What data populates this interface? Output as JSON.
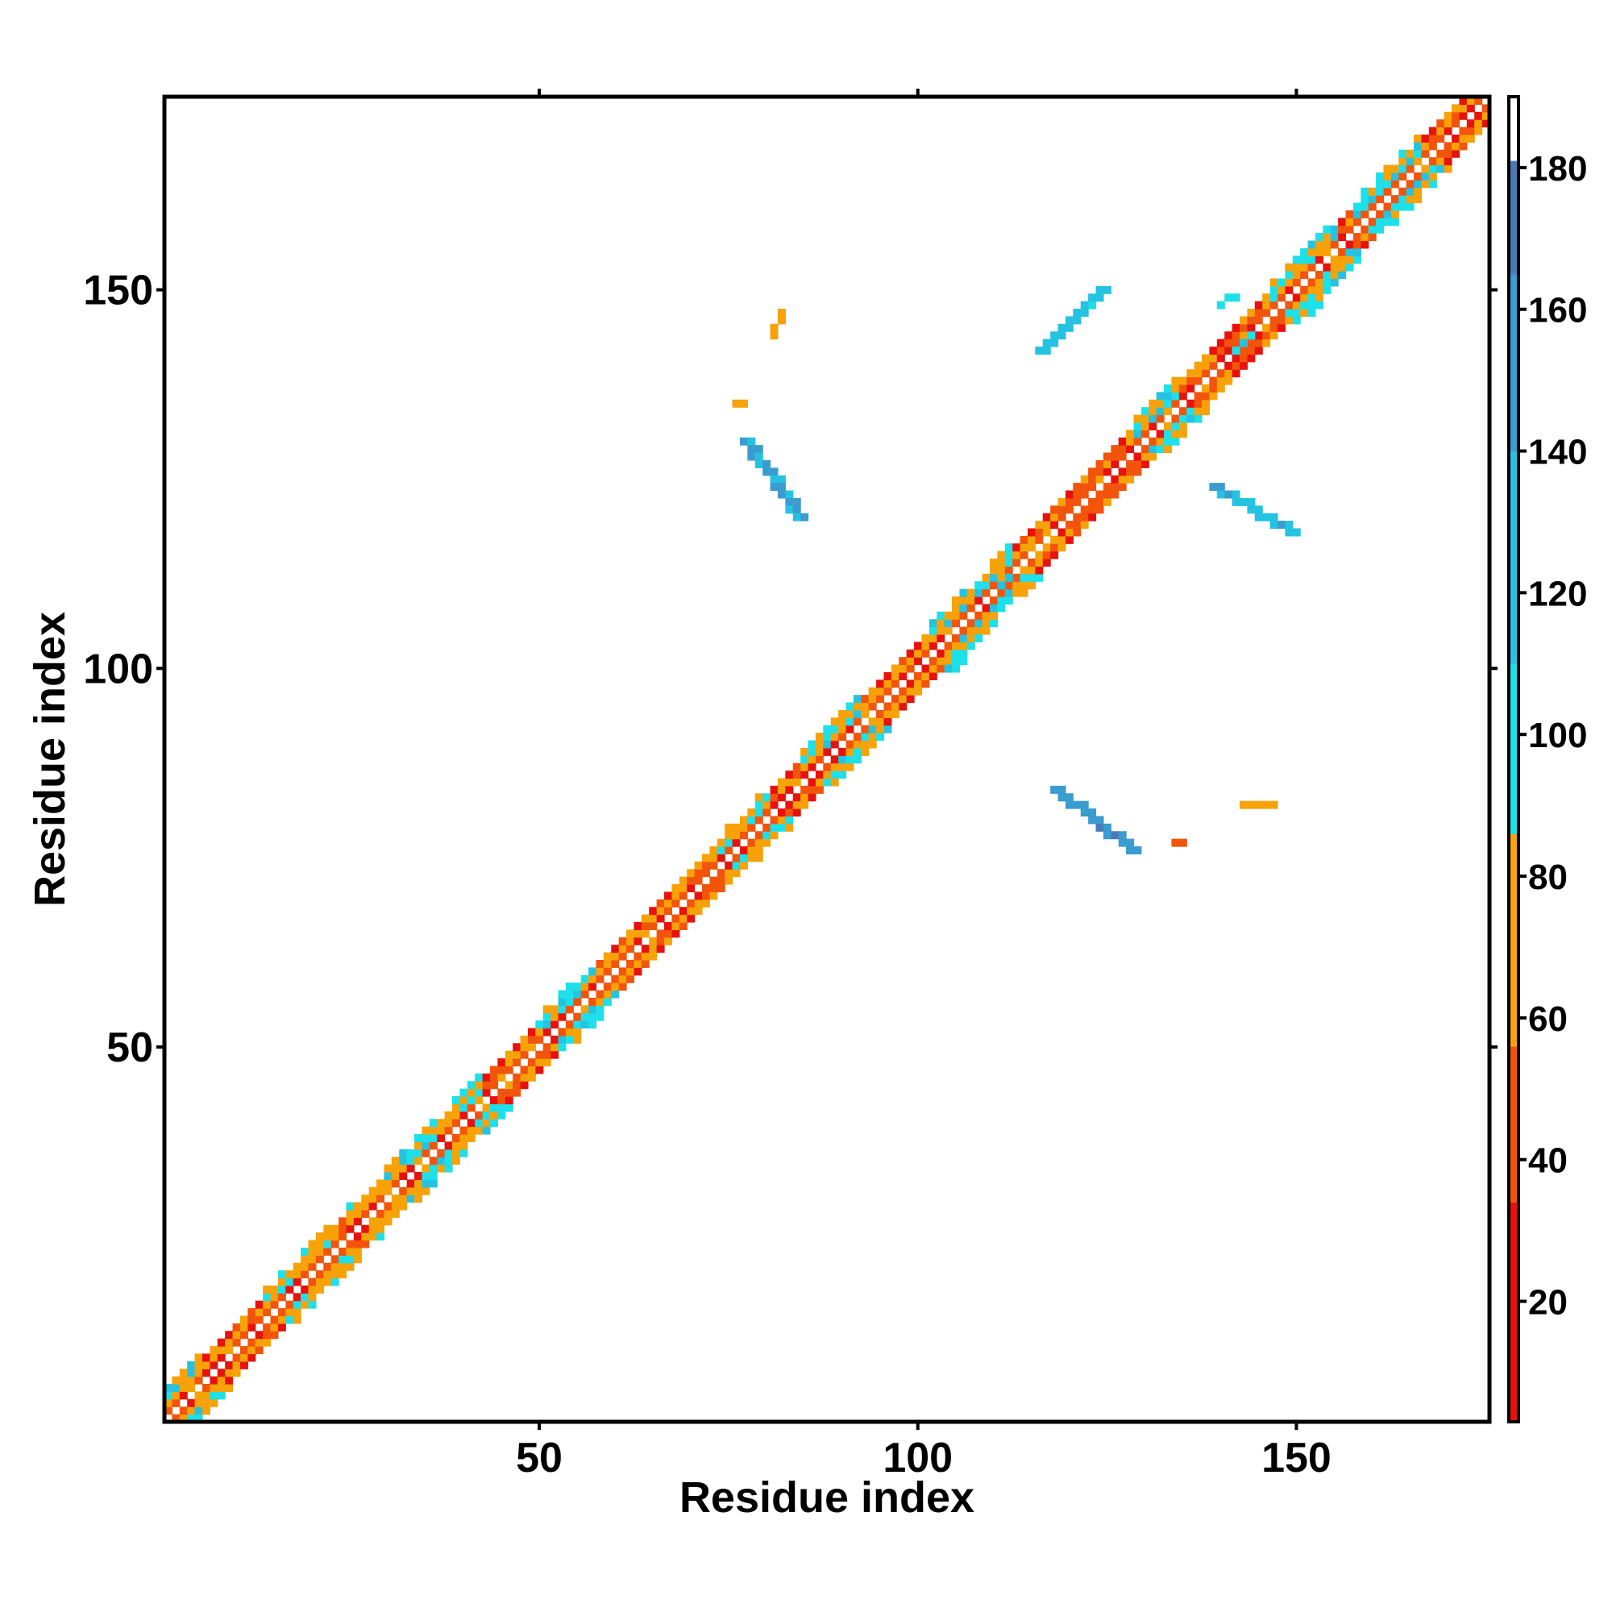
{
  "chart_data": {
    "type": "heatmap",
    "title": "",
    "xlabel": "Residue index",
    "ylabel": "Residue index",
    "xlim": [
      1,
      175
    ],
    "ylim": [
      1,
      175
    ],
    "x_ticks": [
      50,
      100,
      150
    ],
    "y_ticks": [
      50,
      100,
      150
    ],
    "x_tick_labels": [
      "50",
      "100",
      "150"
    ],
    "y_tick_labels": [
      "50",
      "100",
      "150"
    ],
    "grid": false,
    "colorbar": {
      "range": [
        3,
        190
      ],
      "ticks": [
        20,
        40,
        60,
        80,
        100,
        120,
        140,
        160,
        180
      ],
      "tick_labels": [
        "20",
        "40",
        "60",
        "80",
        "100",
        "120",
        "140",
        "160",
        "180"
      ],
      "segments": [
        {
          "from": 3,
          "to": 34,
          "color": "#e8120c"
        },
        {
          "from": 34,
          "to": 56,
          "color": "#f2540c"
        },
        {
          "from": 56,
          "to": 86,
          "color": "#f7a208"
        },
        {
          "from": 86,
          "to": 110,
          "color": "#1de0ea"
        },
        {
          "from": 110,
          "to": 140,
          "color": "#25c3e1"
        },
        {
          "from": 140,
          "to": 165,
          "color": "#3a9ccf"
        },
        {
          "from": 165,
          "to": 181,
          "color": "#4a7ab6"
        },
        {
          "from": 181,
          "to": 190,
          "color": "#ffffff"
        }
      ]
    },
    "diagonal_band": {
      "from": 1,
      "to": 175
    },
    "helix_segments": [
      {
        "start": 1,
        "end": 5
      },
      {
        "start": 14,
        "end": 22
      },
      {
        "start": 25,
        "end": 32
      },
      {
        "start": 33,
        "end": 42
      },
      {
        "start": 50,
        "end": 57
      },
      {
        "start": 73,
        "end": 80
      },
      {
        "start": 85,
        "end": 92
      },
      {
        "start": 101,
        "end": 112
      },
      {
        "start": 129,
        "end": 134
      },
      {
        "start": 147,
        "end": 155
      },
      {
        "start": 158,
        "end": 166
      }
    ],
    "contact_clusters": [
      {
        "x": [
          77,
          84
        ],
        "y": [
          120,
          130
        ],
        "value": 150
      },
      {
        "x": [
          81,
          82
        ],
        "y": [
          144,
          147
        ],
        "value": 70
      },
      {
        "x": [
          76,
          77
        ],
        "y": [
          135,
          135
        ],
        "value": 50
      },
      {
        "x": [
          116,
          124
        ],
        "y": [
          142,
          150
        ],
        "value": 120
      },
      {
        "x": [
          118,
          128
        ],
        "y": [
          76,
          84
        ],
        "value": 155
      },
      {
        "x": [
          125,
          134
        ],
        "y": [
          127,
          138
        ],
        "value": 115
      },
      {
        "x": [
          139,
          149
        ],
        "y": [
          118,
          124
        ],
        "value": 130
      },
      {
        "x": [
          143,
          147
        ],
        "y": [
          82,
          82
        ],
        "value": 65
      },
      {
        "x": [
          134,
          135
        ],
        "y": [
          77,
          77
        ],
        "value": 50
      },
      {
        "x": [
          104,
          112
        ],
        "y": [
          100,
          112
        ],
        "value": 110
      },
      {
        "x": [
          141,
          152
        ],
        "y": [
          142,
          148
        ],
        "value": 105
      },
      {
        "x": [
          140,
          142
        ],
        "y": [
          148,
          149
        ],
        "value": 100
      }
    ]
  }
}
